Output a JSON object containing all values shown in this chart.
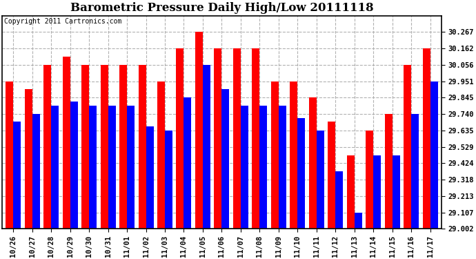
{
  "title": "Barometric Pressure Daily High/Low 20111118",
  "copyright": "Copyright 2011 Cartronics.com",
  "dates": [
    "10/26",
    "10/27",
    "10/28",
    "10/29",
    "10/30",
    "10/31",
    "11/01",
    "11/02",
    "11/03",
    "11/04",
    "11/05",
    "11/06",
    "11/07",
    "11/08",
    "11/09",
    "11/10",
    "11/11",
    "11/12",
    "11/13",
    "11/14",
    "11/15",
    "11/16",
    "11/17"
  ],
  "highs": [
    29.951,
    29.898,
    30.056,
    30.109,
    30.056,
    30.056,
    30.056,
    30.056,
    29.951,
    30.162,
    30.267,
    30.162,
    30.162,
    30.162,
    29.951,
    29.951,
    29.845,
    29.69,
    29.476,
    29.635,
    29.74,
    30.056,
    30.162
  ],
  "lows": [
    29.69,
    29.74,
    29.793,
    29.82,
    29.793,
    29.793,
    29.793,
    29.66,
    29.635,
    29.845,
    30.056,
    29.898,
    29.793,
    29.793,
    29.793,
    29.714,
    29.635,
    29.37,
    29.107,
    29.476,
    29.476,
    29.74,
    29.951
  ],
  "high_color": "#FF0000",
  "low_color": "#0000FF",
  "bg_color": "#FFFFFF",
  "grid_color": "#AAAAAA",
  "yticks": [
    29.002,
    29.107,
    29.213,
    29.318,
    29.424,
    29.529,
    29.635,
    29.74,
    29.845,
    29.951,
    30.056,
    30.162,
    30.267
  ],
  "ymin": 29.002,
  "ymax": 30.372,
  "bar_width": 0.4,
  "title_fontsize": 12,
  "tick_fontsize": 7.5,
  "copyright_fontsize": 7
}
